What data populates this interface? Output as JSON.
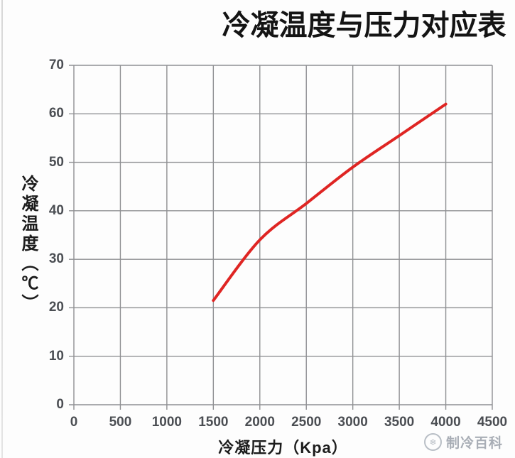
{
  "chart": {
    "title": "冷凝温度与压力对应表",
    "x_axis": {
      "label": "冷凝压力（Kpa）"
    },
    "y_axis": {
      "label": "冷凝温度（℃）"
    }
  },
  "chart_data": {
    "type": "line",
    "title": "冷凝温度与压力对应表",
    "xlabel": "冷凝压力（Kpa）",
    "ylabel": "冷凝温度（℃）",
    "xlim": [
      0,
      4500
    ],
    "ylim": [
      0,
      70
    ],
    "x_ticks": [
      0,
      500,
      1000,
      1500,
      2000,
      2500,
      3000,
      3500,
      4000,
      4500
    ],
    "y_ticks": [
      0,
      10,
      20,
      30,
      40,
      50,
      60,
      70
    ],
    "grid": true,
    "legend": false,
    "series": [
      {
        "name": "冷凝温度",
        "color": "#df2523",
        "x": [
          1500,
          2000,
          2500,
          3000,
          3500,
          4000
        ],
        "y": [
          21.5,
          34,
          41.5,
          49,
          55.5,
          62
        ]
      }
    ]
  },
  "watermark": {
    "text": "制冷百科",
    "icon": "snowflake-logo-icon"
  },
  "colors": {
    "grid": "#8f9093",
    "axis_text": "#4b4e53",
    "title_text": "#141414",
    "curve": "#df2523",
    "watermark": "#a9aeb6",
    "background": "#fdfdfd"
  }
}
